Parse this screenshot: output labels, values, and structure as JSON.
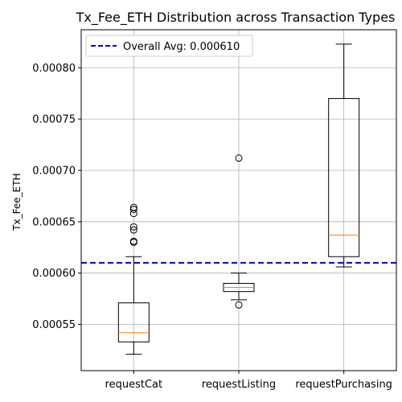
{
  "chart_data": {
    "type": "box",
    "title": "Tx_Fee_ETH Distribution across Transaction Types",
    "xlabel": "",
    "ylabel": "Tx_Fee_ETH",
    "ylim": [
      0.000505,
      0.000837
    ],
    "yticks": [
      "0.00055",
      "0.00060",
      "0.00065",
      "0.00070",
      "0.00075",
      "0.00080"
    ],
    "grid": true,
    "legend": {
      "position": "top-left",
      "label": "Overall Avg: 0.000610"
    },
    "reference_line": {
      "value": 0.00061,
      "color": "#0000cc",
      "style": "dashed"
    },
    "categories": [
      "requestCat",
      "requestListing",
      "requestPurchasing"
    ],
    "boxes": [
      {
        "whisker_low": 0.000521,
        "q1": 0.000533,
        "median": 0.000542,
        "q3": 0.000571,
        "whisker_high": 0.000616,
        "outliers": [
          0.00063,
          0.000631,
          0.000642,
          0.000645,
          0.000658,
          0.000662,
          0.000664
        ]
      },
      {
        "whisker_low": 0.000574,
        "q1": 0.000582,
        "median": 0.000586,
        "q3": 0.00059,
        "whisker_high": 0.0006,
        "outliers": [
          0.000569,
          0.000712
        ]
      },
      {
        "whisker_low": 0.000606,
        "q1": 0.000616,
        "median": 0.000637,
        "q3": 0.00077,
        "whisker_high": 0.000823,
        "outliers": []
      }
    ],
    "colors": {
      "box": "#000000",
      "median": "#ff7f0e",
      "grid": "#b0b0b0"
    }
  }
}
